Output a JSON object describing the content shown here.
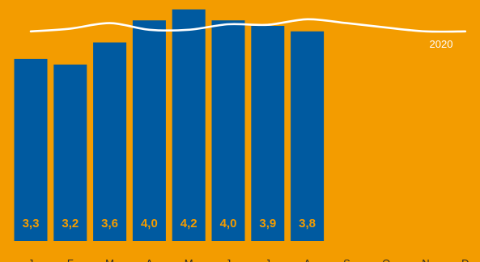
{
  "chart_data": {
    "type": "bar",
    "categories": [
      "J",
      "F",
      "M",
      "A",
      "M",
      "J",
      "J",
      "A",
      "S",
      "O",
      "N",
      "D"
    ],
    "series": [
      {
        "name": "",
        "type": "bar",
        "values": [
          3.3,
          3.2,
          3.6,
          4.0,
          4.2,
          4.0,
          3.9,
          3.8,
          null,
          null,
          null,
          null
        ]
      },
      {
        "name": "2020",
        "type": "line",
        "values": [
          3.8,
          3.85,
          3.95,
          3.83,
          3.83,
          3.93,
          3.92,
          4.02,
          3.95,
          3.87,
          3.8,
          3.8
        ]
      }
    ],
    "data_labels": [
      "3,3",
      "3,2",
      "3,6",
      "4,0",
      "4,2",
      "4,0",
      "3,9",
      "3,8"
    ],
    "ylim": [
      0,
      4.4
    ],
    "grid": false,
    "legend": "none",
    "colors": {
      "background": "#F39C00",
      "bar": "#005AA0",
      "line": "#FFFFFF",
      "value_label": "#F39C00",
      "tick": "#2A2A2A"
    }
  }
}
